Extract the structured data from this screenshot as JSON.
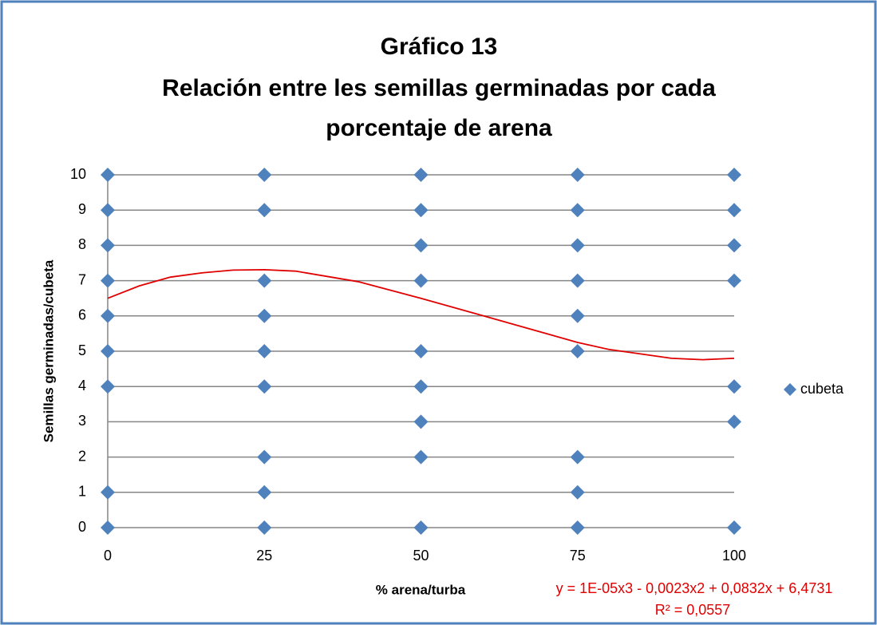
{
  "chart_data": {
    "type": "scatter",
    "title": [
      "Gráfico 13",
      "Relación entre les semillas germinadas por cada",
      "porcentaje de arena"
    ],
    "x_label": "% arena/turba",
    "y_label": "Semillas germinadas/cubeta",
    "xlim": [
      0,
      100
    ],
    "xticks": [
      0,
      25,
      50,
      75,
      100
    ],
    "ylim": [
      0,
      10
    ],
    "yticks": [
      0,
      1,
      2,
      3,
      4,
      5,
      6,
      7,
      8,
      9,
      10
    ],
    "grid": true,
    "legend": "right",
    "series": [
      {
        "name": "cubeta",
        "color": "#4f81bd",
        "x": [
          0,
          0,
          0,
          0,
          0,
          0,
          0,
          0,
          0,
          25,
          25,
          25,
          25,
          25,
          25,
          25,
          25,
          25,
          50,
          50,
          50,
          50,
          50,
          50,
          50,
          50,
          50,
          75,
          75,
          75,
          75,
          75,
          75,
          75,
          75,
          75,
          100,
          100,
          100,
          100,
          100,
          100,
          100
        ],
        "values": [
          0,
          1,
          4,
          5,
          6,
          7,
          8,
          9,
          10,
          0,
          1,
          2,
          4,
          5,
          6,
          7,
          9,
          10,
          0,
          2,
          3,
          4,
          5,
          7,
          8,
          9,
          10,
          0,
          1,
          2,
          5,
          6,
          7,
          8,
          9,
          10,
          0,
          3,
          4,
          7,
          8,
          9,
          10
        ]
      }
    ],
    "trendline": {
      "color": "#e00000",
      "label": "y = 1E-05x3 - 0,0023x2 + 0,0832x + 6,4731",
      "r2_label": "R² = 0,0557",
      "x": [
        0,
        5,
        10,
        15,
        20,
        25,
        30,
        40,
        50,
        60,
        70,
        75,
        80,
        90,
        95,
        100
      ],
      "values": [
        6.5,
        6.85,
        7.1,
        7.22,
        7.3,
        7.31,
        7.27,
        6.97,
        6.5,
        6.0,
        5.5,
        5.25,
        5.05,
        4.8,
        4.76,
        4.8
      ]
    }
  }
}
